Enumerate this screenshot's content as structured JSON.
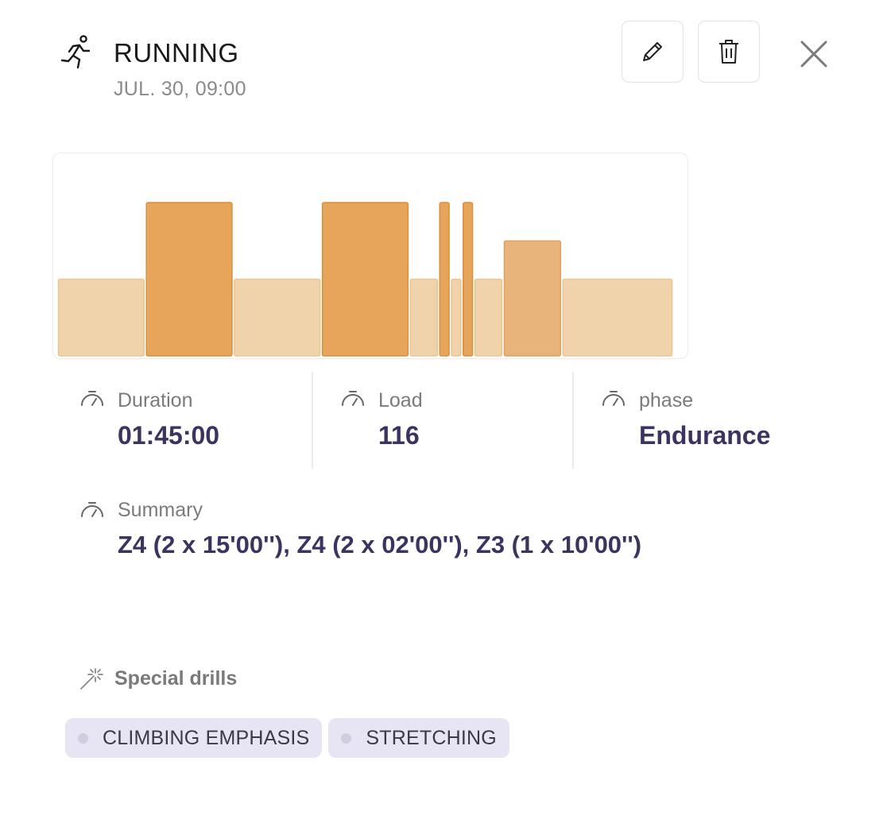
{
  "header": {
    "title": "RUNNING",
    "subtitle": "JUL. 30, 09:00",
    "sport_icon": "running-person-icon",
    "actions": [
      {
        "name": "edit",
        "icon": "pencil-icon"
      },
      {
        "name": "delete",
        "icon": "trash-icon"
      },
      {
        "name": "close",
        "icon": "close-icon"
      }
    ]
  },
  "chart_data": {
    "type": "bar",
    "description_free": true,
    "x_unit": "minutes",
    "blocks": [
      {
        "start": 0,
        "duration": 15,
        "zone": "Z2"
      },
      {
        "start": 15,
        "duration": 15,
        "zone": "Z4"
      },
      {
        "start": 30,
        "duration": 15,
        "zone": "Z2"
      },
      {
        "start": 45,
        "duration": 15,
        "zone": "Z4"
      },
      {
        "start": 60,
        "duration": 5,
        "zone": "Z2"
      },
      {
        "start": 65,
        "duration": 2,
        "zone": "Z4"
      },
      {
        "start": 67,
        "duration": 2,
        "zone": "Z2"
      },
      {
        "start": 69,
        "duration": 2,
        "zone": "Z4"
      },
      {
        "start": 71,
        "duration": 5,
        "zone": "Z2"
      },
      {
        "start": 76,
        "duration": 10,
        "zone": "Z3"
      },
      {
        "start": 86,
        "duration": 19,
        "zone": "Z2"
      }
    ],
    "zone_levels": {
      "Z2": 2,
      "Z3": 3,
      "Z4": 4
    },
    "colors": {
      "Z2": "#f1d3ab",
      "Z3": "#e9b47b",
      "Z4": "#e7a55c",
      "border_Z2": "#e8c690",
      "border_Z3": "#dea064",
      "border_Z4": "#d98f3c"
    },
    "ylim": [
      0,
      4
    ]
  },
  "stats": [
    {
      "label": "Duration",
      "value": "01:45:00",
      "icon": "gauge-icon"
    },
    {
      "label": "Load",
      "value": "116",
      "icon": "gauge-icon"
    },
    {
      "label": "phase",
      "value": "Endurance",
      "icon": "gauge-icon"
    }
  ],
  "summary": {
    "label": "Summary",
    "value": "Z4 (2 x 15'00''), Z4 (2 x 02'00''), Z3 (1 x 10'00'')",
    "icon": "gauge-icon"
  },
  "drills": {
    "label": "Special drills",
    "icon": "magic-wand-icon",
    "tags": [
      "CLIMBING EMPHASIS",
      "STRETCHING"
    ]
  },
  "colors": {
    "value_text": "#3d3361",
    "tag_bg": "#e7e5f3"
  }
}
